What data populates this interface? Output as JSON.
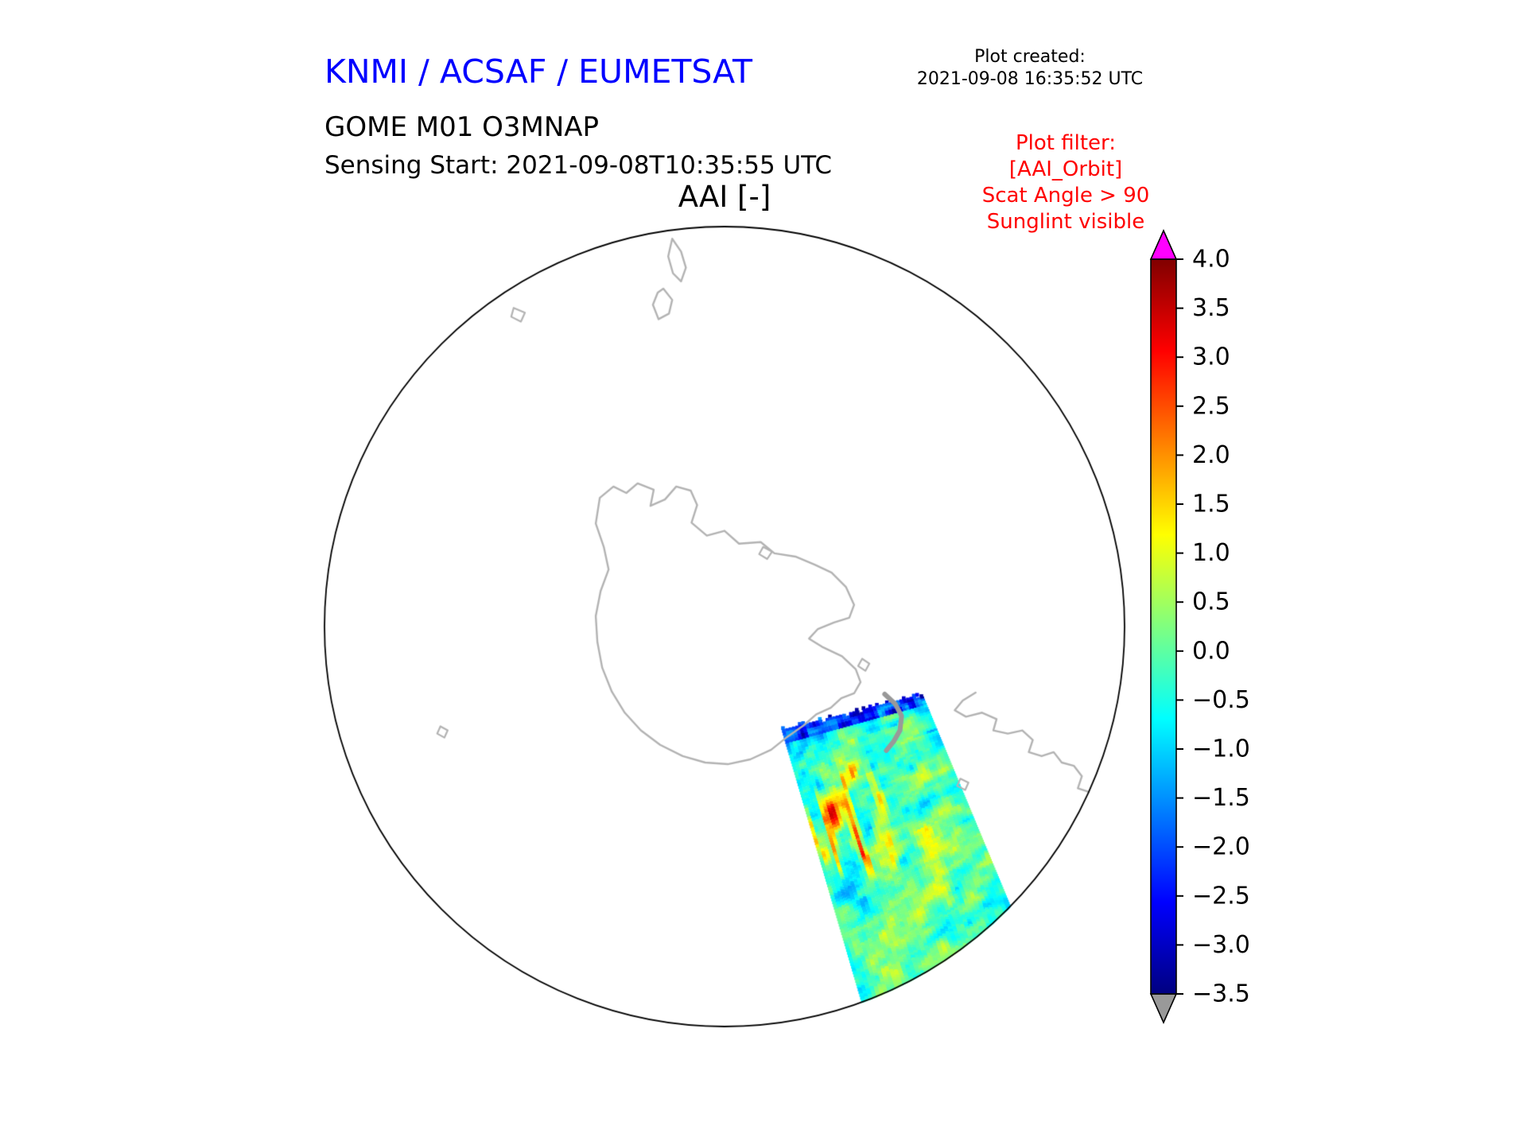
{
  "colors": {
    "title_blue": "#0000ff",
    "filter_red": "#ff0000",
    "coastline_gray": "#b3b3b3",
    "peninsula_gray": "#999999",
    "circle_edge": "#000000",
    "colorbar_over": "#ff00ff",
    "colorbar_under": "#999999"
  },
  "header": {
    "org_title": "KNMI / ACSAF / EUMETSAT",
    "plot_created_label": "Plot created:",
    "plot_created_value": "2021-09-08 16:35:52 UTC",
    "product_line": "GOME M01 O3MNAP",
    "sensing_line": "Sensing Start: 2021-09-08T10:35:55 UTC"
  },
  "plot_filter": {
    "lines": [
      "Plot filter:",
      "[AAI_Orbit]",
      "Scat Angle > 90",
      "Sunglint visible"
    ]
  },
  "chart_data": {
    "type": "heatmap",
    "title": "AAI [-]",
    "projection": "South polar stereographic view centered on Antarctica",
    "colorbar": {
      "label": "AAI [-]",
      "value_min": -3.5,
      "value_max": 4.0,
      "tick_values": [
        4.0,
        3.5,
        3.0,
        2.5,
        2.0,
        1.5,
        1.0,
        0.5,
        0.0,
        -0.5,
        -1.0,
        -1.5,
        -2.0,
        -2.5,
        -3.0,
        -3.5
      ],
      "tick_labels": [
        "4.0",
        "3.5",
        "3.0",
        "2.5",
        "2.0",
        "1.5",
        "1.0",
        "0.5",
        "0.0",
        "−0.5",
        "−1.0",
        "−1.5",
        "−2.0",
        "−2.5",
        "−3.0",
        "−3.5"
      ],
      "colormap": "jet",
      "over_arrow_color": "#ff00ff",
      "under_arrow_color": "#999999",
      "colormap_stops": [
        {
          "pos": 0.0,
          "rgb": [
            0,
            0,
            128
          ]
        },
        {
          "pos": 0.125,
          "rgb": [
            0,
            0,
            255
          ]
        },
        {
          "pos": 0.375,
          "rgb": [
            0,
            255,
            255
          ]
        },
        {
          "pos": 0.625,
          "rgb": [
            255,
            255,
            0
          ]
        },
        {
          "pos": 0.875,
          "rgb": [
            255,
            0,
            0
          ]
        },
        {
          "pos": 1.0,
          "rgb": [
            128,
            0,
            0
          ]
        }
      ]
    },
    "swath": {
      "satellite": "GOME-2 on Metop-B (M01)",
      "quantity": "Absorbing Aerosol Index [-]",
      "observed_value_range": [
        -3.2,
        3.6
      ],
      "background_typical": 0.0,
      "features": [
        {
          "region": "northern (top) edge of swath",
          "values": "-1.5 to -3.2",
          "appearance": "dark blue band with jagged white gaps"
        },
        {
          "region": "left-central part of swath",
          "values": "2.0 to 3.6",
          "appearance": "red/orange elongated streaks"
        },
        {
          "region": "central and lower swath",
          "values": "-1.0 to 1.2",
          "appearance": "green/cyan mottled field with yellow patches"
        },
        {
          "region": "lower-right near circle edge",
          "values": "0.8 to 1.5",
          "appearance": "yellow streak"
        }
      ],
      "geometry_norm": {
        "top_left": [
          0.57,
          0.625
        ],
        "top_right": [
          0.745,
          0.582
        ],
        "bottom_left": [
          0.714,
          1.115
        ],
        "bottom_right": [
          0.899,
          0.953
        ]
      },
      "grid": {
        "across": 42,
        "along": 140
      }
    },
    "map": {
      "coastlines": [
        {
          "name": "antarctica",
          "closed": true,
          "width": 2.4,
          "points": [
            [
              0.34,
              0.372
            ],
            [
              0.345,
              0.34
            ],
            [
              0.362,
              0.326
            ],
            [
              0.378,
              0.334
            ],
            [
              0.392,
              0.322
            ],
            [
              0.412,
              0.33
            ],
            [
              0.408,
              0.35
            ],
            [
              0.426,
              0.342
            ],
            [
              0.44,
              0.326
            ],
            [
              0.458,
              0.331
            ],
            [
              0.466,
              0.349
            ],
            [
              0.459,
              0.371
            ],
            [
              0.478,
              0.387
            ],
            [
              0.5,
              0.381
            ],
            [
              0.518,
              0.397
            ],
            [
              0.545,
              0.395
            ],
            [
              0.562,
              0.409
            ],
            [
              0.588,
              0.413
            ],
            [
              0.612,
              0.423
            ],
            [
              0.633,
              0.433
            ],
            [
              0.651,
              0.451
            ],
            [
              0.661,
              0.473
            ],
            [
              0.655,
              0.489
            ],
            [
              0.636,
              0.495
            ],
            [
              0.616,
              0.503
            ],
            [
              0.605,
              0.515
            ],
            [
              0.621,
              0.525
            ],
            [
              0.646,
              0.537
            ],
            [
              0.663,
              0.553
            ],
            [
              0.669,
              0.569
            ],
            [
              0.661,
              0.583
            ],
            [
              0.645,
              0.589
            ],
            [
              0.632,
              0.601
            ],
            [
              0.614,
              0.609
            ],
            [
              0.598,
              0.623
            ],
            [
              0.578,
              0.637
            ],
            [
              0.558,
              0.653
            ],
            [
              0.532,
              0.665
            ],
            [
              0.504,
              0.671
            ],
            [
              0.476,
              0.669
            ],
            [
              0.448,
              0.661
            ],
            [
              0.42,
              0.647
            ],
            [
              0.396,
              0.629
            ],
            [
              0.376,
              0.607
            ],
            [
              0.36,
              0.581
            ],
            [
              0.348,
              0.551
            ],
            [
              0.342,
              0.519
            ],
            [
              0.34,
              0.487
            ],
            [
              0.346,
              0.456
            ],
            [
              0.356,
              0.429
            ],
            [
              0.35,
              0.401
            ]
          ]
        },
        {
          "name": "south-america",
          "closed": false,
          "width": 2.4,
          "points": [
            [
              0.812,
              0.582
            ],
            [
              0.796,
              0.592
            ],
            [
              0.786,
              0.604
            ],
            [
              0.8,
              0.612
            ],
            [
              0.82,
              0.607
            ],
            [
              0.838,
              0.615
            ],
            [
              0.834,
              0.629
            ],
            [
              0.852,
              0.633
            ],
            [
              0.87,
              0.629
            ],
            [
              0.883,
              0.641
            ],
            [
              0.878,
              0.656
            ],
            [
              0.894,
              0.661
            ],
            [
              0.909,
              0.656
            ],
            [
              0.919,
              0.669
            ],
            [
              0.934,
              0.673
            ],
            [
              0.944,
              0.686
            ],
            [
              0.939,
              0.701
            ],
            [
              0.954,
              0.706
            ],
            [
              0.964,
              0.719
            ],
            [
              0.959,
              0.733
            ],
            [
              0.971,
              0.743
            ],
            [
              0.981,
              0.759
            ],
            [
              0.974,
              0.773
            ],
            [
              0.986,
              0.788
            ],
            [
              0.996,
              0.8
            ]
          ]
        },
        {
          "name": "tierra-del-fuego",
          "closed": false,
          "width": 2.4,
          "points": [
            [
              0.93,
              0.798
            ],
            [
              0.912,
              0.81
            ],
            [
              0.92,
              0.827
            ],
            [
              0.941,
              0.834
            ],
            [
              0.96,
              0.828
            ],
            [
              0.976,
              0.836
            ]
          ]
        },
        {
          "name": "nz-north-island",
          "closed": true,
          "width": 2.4,
          "points": [
            [
              0.435,
              0.018
            ],
            [
              0.446,
              0.034
            ],
            [
              0.452,
              0.054
            ],
            [
              0.446,
              0.071
            ],
            [
              0.436,
              0.061
            ],
            [
              0.43,
              0.04
            ]
          ]
        },
        {
          "name": "nz-south-island",
          "closed": true,
          "width": 2.4,
          "points": [
            [
              0.424,
              0.08
            ],
            [
              0.435,
              0.094
            ],
            [
              0.431,
              0.111
            ],
            [
              0.418,
              0.118
            ],
            [
              0.411,
              0.1
            ],
            [
              0.417,
              0.085
            ]
          ]
        },
        {
          "name": "small-island-a",
          "closed": true,
          "width": 2.2,
          "points": [
            [
              0.238,
              0.104
            ],
            [
              0.252,
              0.11
            ],
            [
              0.247,
              0.121
            ],
            [
              0.235,
              0.115
            ]
          ]
        },
        {
          "name": "small-island-b",
          "closed": true,
          "width": 2.2,
          "points": [
            [
              0.147,
              0.624
            ],
            [
              0.156,
              0.629
            ],
            [
              0.152,
              0.638
            ],
            [
              0.143,
              0.633
            ]
          ]
        },
        {
          "name": "small-island-c",
          "closed": true,
          "width": 2.2,
          "points": [
            [
              0.793,
              0.689
            ],
            [
              0.803,
              0.694
            ],
            [
              0.799,
              0.703
            ],
            [
              0.789,
              0.698
            ]
          ]
        },
        {
          "name": "small-island-d",
          "closed": true,
          "width": 2.2,
          "points": [
            [
              0.548,
              0.401
            ],
            [
              0.559,
              0.407
            ],
            [
              0.553,
              0.416
            ],
            [
              0.543,
              0.41
            ]
          ]
        },
        {
          "name": "small-island-e",
          "closed": true,
          "width": 2.2,
          "points": [
            [
              0.671,
              0.54
            ],
            [
              0.68,
              0.546
            ],
            [
              0.675,
              0.555
            ],
            [
              0.666,
              0.549
            ]
          ]
        }
      ],
      "peninsula_overlay": {
        "width": 6,
        "points": [
          [
            0.699,
            0.584
          ],
          [
            0.712,
            0.596
          ],
          [
            0.72,
            0.611
          ],
          [
            0.718,
            0.629
          ],
          [
            0.71,
            0.643
          ],
          [
            0.701,
            0.654
          ]
        ]
      }
    }
  }
}
